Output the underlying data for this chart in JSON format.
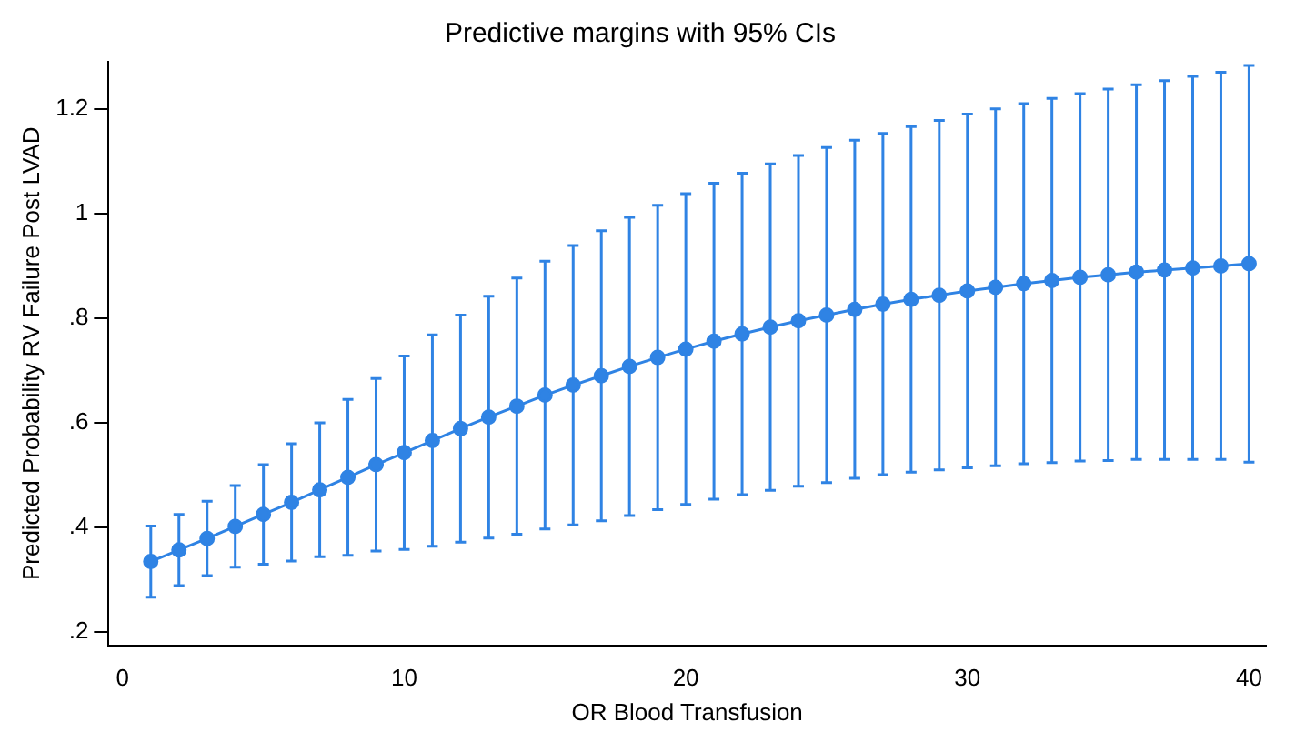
{
  "chart_data": {
    "type": "line",
    "title": "Predictive margins with 95% CIs",
    "xlabel": "OR Blood Transfusion",
    "ylabel": "Predicted Probability RV Failure Post LVAD",
    "x": [
      1,
      2,
      3,
      4,
      5,
      6,
      7,
      8,
      9,
      10,
      11,
      12,
      13,
      14,
      15,
      16,
      17,
      18,
      19,
      20,
      21,
      22,
      23,
      24,
      25,
      26,
      27,
      28,
      29,
      30,
      31,
      32,
      33,
      34,
      35,
      36,
      37,
      38,
      39,
      40
    ],
    "series": [
      {
        "color": "#2f83e4",
        "values": [
          0.335,
          0.357,
          0.379,
          0.402,
          0.425,
          0.448,
          0.472,
          0.496,
          0.52,
          0.543,
          0.566,
          0.589,
          0.611,
          0.632,
          0.653,
          0.672,
          0.69,
          0.708,
          0.725,
          0.741,
          0.756,
          0.77,
          0.783,
          0.795,
          0.806,
          0.817,
          0.827,
          0.836,
          0.844,
          0.852,
          0.859,
          0.866,
          0.872,
          0.878,
          0.883,
          0.888,
          0.892,
          0.896,
          0.9,
          0.904
        ],
        "errors": [
          0.068,
          0.068,
          0.071,
          0.078,
          0.095,
          0.112,
          0.128,
          0.149,
          0.165,
          0.185,
          0.202,
          0.217,
          0.231,
          0.245,
          0.256,
          0.267,
          0.277,
          0.285,
          0.291,
          0.297,
          0.302,
          0.307,
          0.312,
          0.316,
          0.32,
          0.323,
          0.326,
          0.33,
          0.334,
          0.338,
          0.341,
          0.344,
          0.348,
          0.351,
          0.355,
          0.358,
          0.362,
          0.366,
          0.37,
          0.379
        ]
      }
    ],
    "xlim": [
      -0.5,
      40.6
    ],
    "xticks": [
      0,
      10,
      20,
      30,
      40
    ],
    "ylim": [
      0.175,
      1.29
    ],
    "yticks": [
      {
        "value": 0.2,
        "label": ".2"
      },
      {
        "value": 0.4,
        "label": ".4"
      },
      {
        "value": 0.6,
        "label": ".6"
      },
      {
        "value": 0.8,
        "label": ".8"
      },
      {
        "value": 1,
        "label": "1"
      },
      {
        "value": 1.2,
        "label": "1.2"
      }
    ],
    "marker": "circle",
    "line_style": "solid",
    "grid": false,
    "legend": false
  }
}
